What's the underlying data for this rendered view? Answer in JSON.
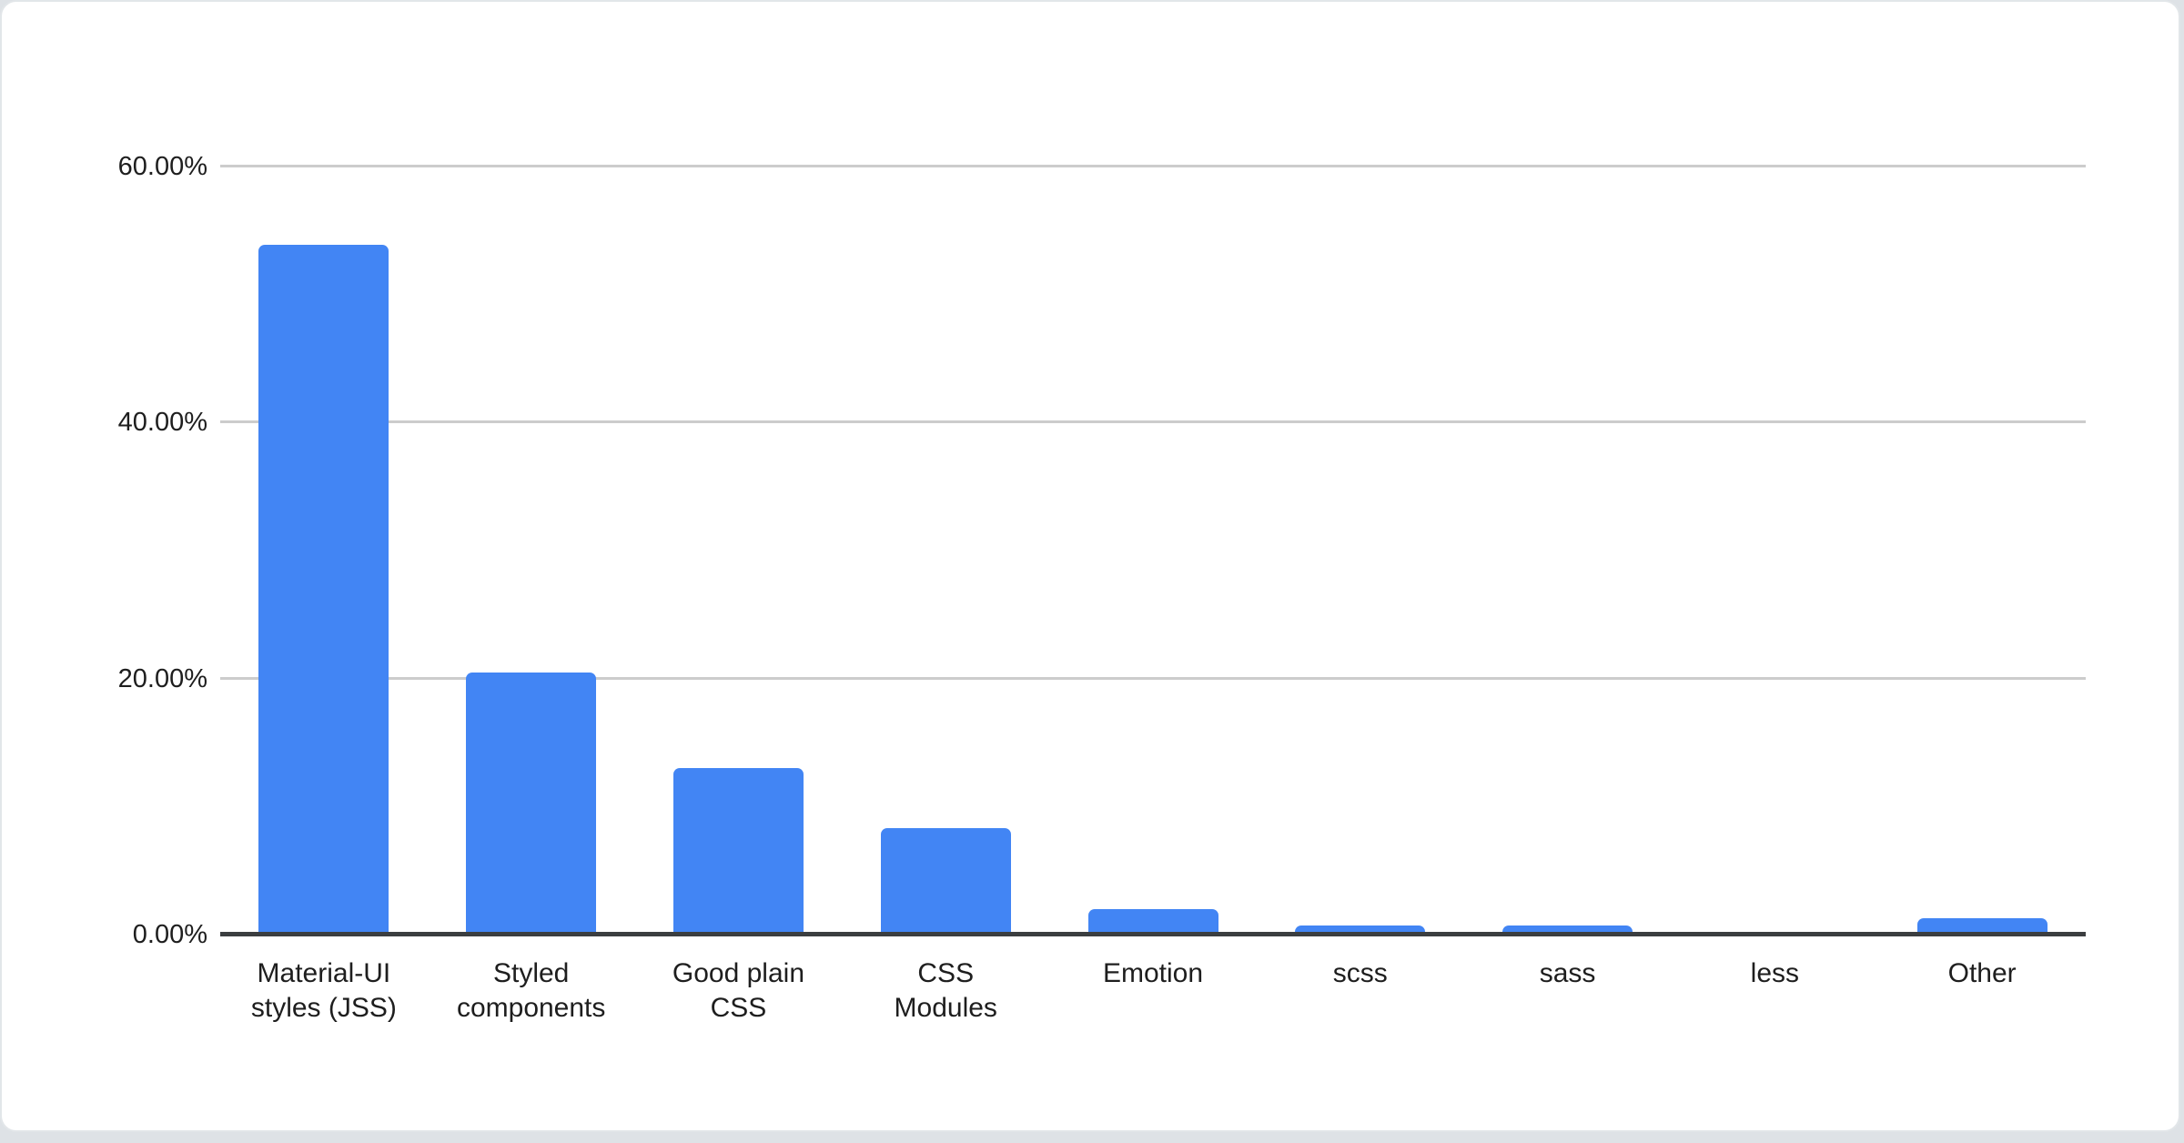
{
  "page": {
    "background_color": "#dee2e6",
    "card_background_color": "#ffffff",
    "card_border_color": "#e2e6e9"
  },
  "chart_data": {
    "type": "bar",
    "title": "",
    "xlabel": "",
    "ylabel": "",
    "categories": [
      "Material-UI styles (JSS)",
      "Styled components",
      "Good plain CSS",
      "CSS Modules",
      "Emotion",
      "scss",
      "sass",
      "less",
      "Other"
    ],
    "category_label_lines": [
      [
        "Material-UI",
        "styles (JSS)"
      ],
      [
        "Styled",
        "components"
      ],
      [
        "Good plain",
        "CSS"
      ],
      [
        "CSS",
        "Modules"
      ],
      [
        "Emotion"
      ],
      [
        "scss"
      ],
      [
        "sass"
      ],
      [
        "less"
      ],
      [
        "Other"
      ]
    ],
    "values": [
      53.9,
      20.5,
      13.0,
      8.3,
      2.0,
      0.7,
      0.7,
      0.1,
      1.3
    ],
    "value_unit": "%",
    "ylim": [
      0,
      60
    ],
    "yticks": [
      {
        "value": 0,
        "label": "0.00%"
      },
      {
        "value": 20,
        "label": "20.00%"
      },
      {
        "value": 40,
        "label": "40.00%"
      },
      {
        "value": 60,
        "label": "60.00%"
      }
    ],
    "grid": true,
    "legend": false,
    "bar_color": "#4285f4",
    "gridline_color": "#cccccc",
    "axis_line_color": "#3b3e40",
    "text_color": "#1e1e1e"
  }
}
